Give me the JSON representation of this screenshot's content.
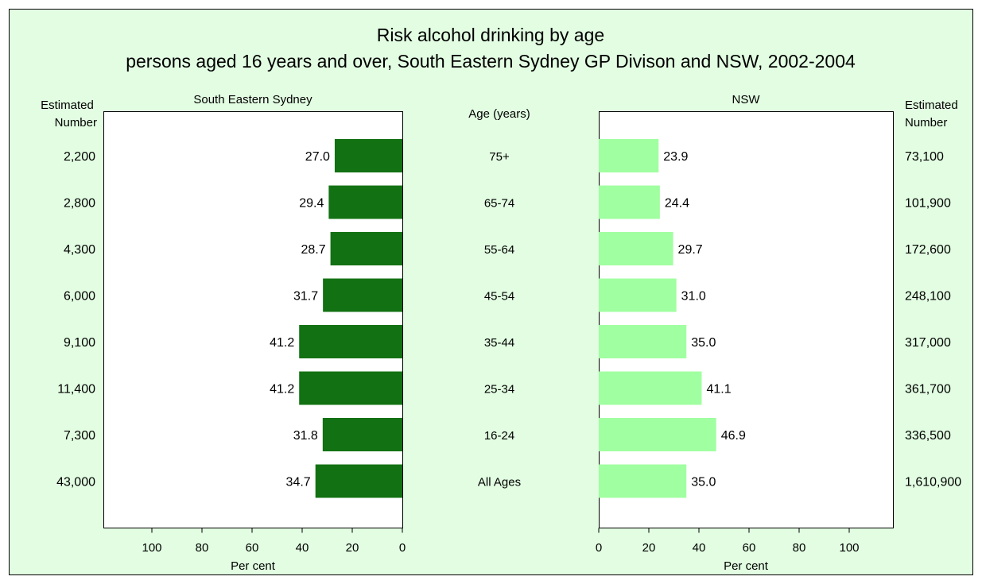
{
  "chart_data": {
    "type": "bar",
    "title": "Risk alcohol drinking by age",
    "subtitle": "persons aged 16 years and over, South Eastern Sydney GP Divison and NSW, 2002-2004",
    "category_header": "Age (years)",
    "categories": [
      "75+",
      "65-74",
      "55-64",
      "45-54",
      "35-44",
      "25-34",
      "16-24",
      "All Ages"
    ],
    "xlabel": "Per cent",
    "xlim": [
      0,
      120
    ],
    "x_ticks": [
      "0",
      "20",
      "40",
      "60",
      "80",
      "100"
    ],
    "left_header": "Estimated Number",
    "right_header": "Estimated Number",
    "left_header_lines": [
      "Estimated",
      "Number"
    ],
    "right_header_lines": [
      "Estimated",
      "Number"
    ],
    "series": [
      {
        "name": "South Eastern Sydney",
        "color": "#127112",
        "values": [
          27.0,
          29.4,
          28.7,
          31.7,
          41.2,
          41.2,
          31.8,
          34.7
        ],
        "value_labels": [
          "27.0",
          "29.4",
          "28.7",
          "31.7",
          "41.2",
          "41.2",
          "31.8",
          "34.7"
        ],
        "estimated_numbers": [
          "2,200",
          "2,800",
          "4,300",
          "6,000",
          "9,100",
          "11,400",
          "7,300",
          "43,000"
        ]
      },
      {
        "name": "NSW",
        "color": "#a0ffa0",
        "values": [
          23.9,
          24.4,
          29.7,
          31.0,
          35.0,
          41.1,
          46.9,
          35.0
        ],
        "value_labels": [
          "23.9",
          "24.4",
          "29.7",
          "31.0",
          "35.0",
          "41.1",
          "46.9",
          "35.0"
        ],
        "estimated_numbers": [
          "73,100",
          "101,900",
          "172,600",
          "248,100",
          "317,000",
          "361,700",
          "336,500",
          "1,610,900"
        ]
      }
    ],
    "grid": false,
    "background_color": "#e2fde2"
  }
}
